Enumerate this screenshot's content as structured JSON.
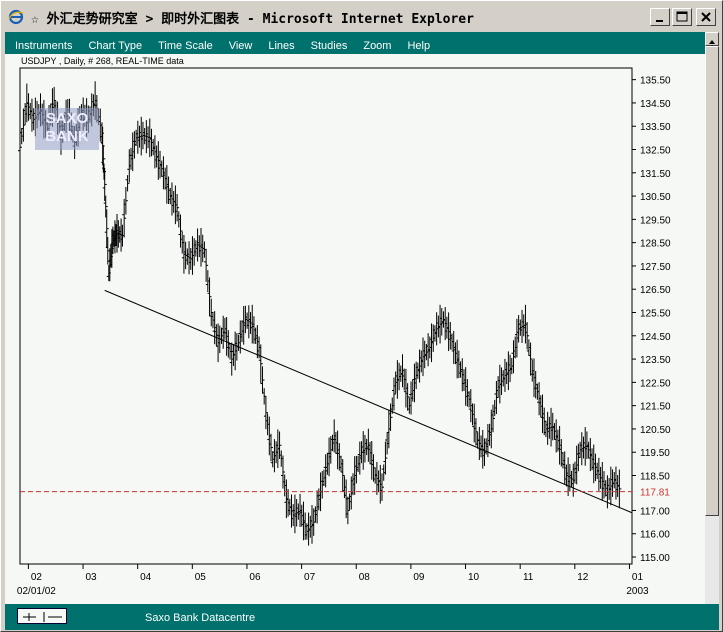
{
  "window": {
    "title": "☆ 外汇走势研究室 > 即时外汇图表 - Microsoft Internet Explorer"
  },
  "menu": [
    "Instruments",
    "Chart Type",
    "Time Scale",
    "View",
    "Lines",
    "Studies",
    "Zoom",
    "Help"
  ],
  "chart_info": "USDJPY , Daily, # 268, REAL-TIME data",
  "logo_text": [
    "SAXO",
    "BANK"
  ],
  "status_text": "Saxo Bank Datacentre",
  "colors": {
    "frame": "#d4d0c8",
    "app": "#00716c",
    "chart_bg": "#f5f8f5",
    "support_line": "#cc3333",
    "price_label": "#cc3333"
  },
  "chart_data": {
    "type": "ohlc",
    "symbol": "USDJPY",
    "interval": "Daily",
    "y_ticks": [
      135.5,
      134.5,
      133.5,
      132.5,
      131.5,
      130.5,
      129.5,
      128.5,
      127.5,
      126.5,
      125.5,
      124.5,
      123.5,
      122.5,
      121.5,
      120.5,
      119.5,
      118.5,
      117.0,
      116.0,
      115.0
    ],
    "y_tick_labels": [
      "135.50",
      "134.50",
      "133.50",
      "132.50",
      "131.50",
      "130.50",
      "129.50",
      "128.50",
      "127.50",
      "126.50",
      "125.50",
      "124.50",
      "123.50",
      "122.50",
      "121.50",
      "120.50",
      "119.50",
      "118.50",
      "117.00",
      "116.00",
      "115.00"
    ],
    "ylim": [
      114.7,
      136.0
    ],
    "x_labels": [
      "02",
      "03",
      "04",
      "05",
      "06",
      "07",
      "08",
      "09",
      "10",
      "11",
      "12",
      "01"
    ],
    "x_sublabels": [
      {
        "under": "02",
        "text": "02/01/02"
      },
      {
        "under": "01",
        "text": "2003"
      }
    ],
    "current_price": 117.81,
    "current_price_label": "117.81",
    "trendline": {
      "start": [
        3.1,
        126.45
      ],
      "end": [
        13.85,
        116.9
      ]
    },
    "closes": [
      [
        0.0,
        132.6
      ],
      [
        0.25,
        134.5
      ],
      [
        0.5,
        133.8
      ],
      [
        0.75,
        134.2
      ],
      [
        1.0,
        133.4
      ],
      [
        1.25,
        134.6
      ],
      [
        1.5,
        133.1
      ],
      [
        1.75,
        134.2
      ],
      [
        2.0,
        132.8
      ],
      [
        2.25,
        134.1
      ],
      [
        2.5,
        133.8
      ],
      [
        2.75,
        134.6
      ],
      [
        3.0,
        133.2
      ],
      [
        3.1,
        131.0
      ],
      [
        3.25,
        127.2
      ],
      [
        3.4,
        128.6
      ],
      [
        3.55,
        128.9
      ],
      [
        3.75,
        128.8
      ],
      [
        4.0,
        131.8
      ],
      [
        4.25,
        133.0
      ],
      [
        4.5,
        133.1
      ],
      [
        4.75,
        133.0
      ],
      [
        5.0,
        132.2
      ],
      [
        5.25,
        131.5
      ],
      [
        5.5,
        130.5
      ],
      [
        5.75,
        130.0
      ],
      [
        6.0,
        128.0
      ],
      [
        6.25,
        127.8
      ],
      [
        6.5,
        128.4
      ],
      [
        6.75,
        128.2
      ],
      [
        7.0,
        125.5
      ],
      [
        7.25,
        124.2
      ],
      [
        7.5,
        124.8
      ],
      [
        7.75,
        123.5
      ],
      [
        8.0,
        124.2
      ],
      [
        8.25,
        125.2
      ],
      [
        8.5,
        125.0
      ],
      [
        8.75,
        124.0
      ],
      [
        9.0,
        121.2
      ],
      [
        9.25,
        119.2
      ],
      [
        9.5,
        119.8
      ],
      [
        9.75,
        117.5
      ],
      [
        10.0,
        116.8
      ],
      [
        10.25,
        117.0
      ],
      [
        10.5,
        116.1
      ],
      [
        10.75,
        116.5
      ],
      [
        11.0,
        117.8
      ],
      [
        11.25,
        119.0
      ],
      [
        11.5,
        120.2
      ],
      [
        11.75,
        119.0
      ],
      [
        12.0,
        117.0
      ],
      [
        12.25,
        118.5
      ],
      [
        12.5,
        119.5
      ],
      [
        12.75,
        119.8
      ],
      [
        13.0,
        118.5
      ],
      [
        13.25,
        118.0
      ],
      [
        13.5,
        120.5
      ],
      [
        13.75,
        122.5
      ],
      [
        14.0,
        123.0
      ],
      [
        14.25,
        121.5
      ],
      [
        14.5,
        122.8
      ],
      [
        14.75,
        123.6
      ],
      [
        15.0,
        124.0
      ],
      [
        15.25,
        124.8
      ],
      [
        15.5,
        125.2
      ],
      [
        15.75,
        124.5
      ],
      [
        16.0,
        123.5
      ],
      [
        16.25,
        122.6
      ],
      [
        16.5,
        121.5
      ],
      [
        16.75,
        120.0
      ],
      [
        17.0,
        119.5
      ],
      [
        17.25,
        120.5
      ],
      [
        17.5,
        122.3
      ],
      [
        17.75,
        122.8
      ],
      [
        18.0,
        123.2
      ],
      [
        18.25,
        124.8
      ],
      [
        18.5,
        125.0
      ],
      [
        18.75,
        123.0
      ],
      [
        19.0,
        121.8
      ],
      [
        19.25,
        120.5
      ],
      [
        19.5,
        120.6
      ],
      [
        19.75,
        119.8
      ],
      [
        20.0,
        118.5
      ],
      [
        20.25,
        118.3
      ],
      [
        20.5,
        119.6
      ],
      [
        20.75,
        119.8
      ],
      [
        21.0,
        119.0
      ],
      [
        21.25,
        118.4
      ],
      [
        21.5,
        117.8
      ],
      [
        21.75,
        118.3
      ],
      [
        22.0,
        117.8
      ]
    ]
  }
}
